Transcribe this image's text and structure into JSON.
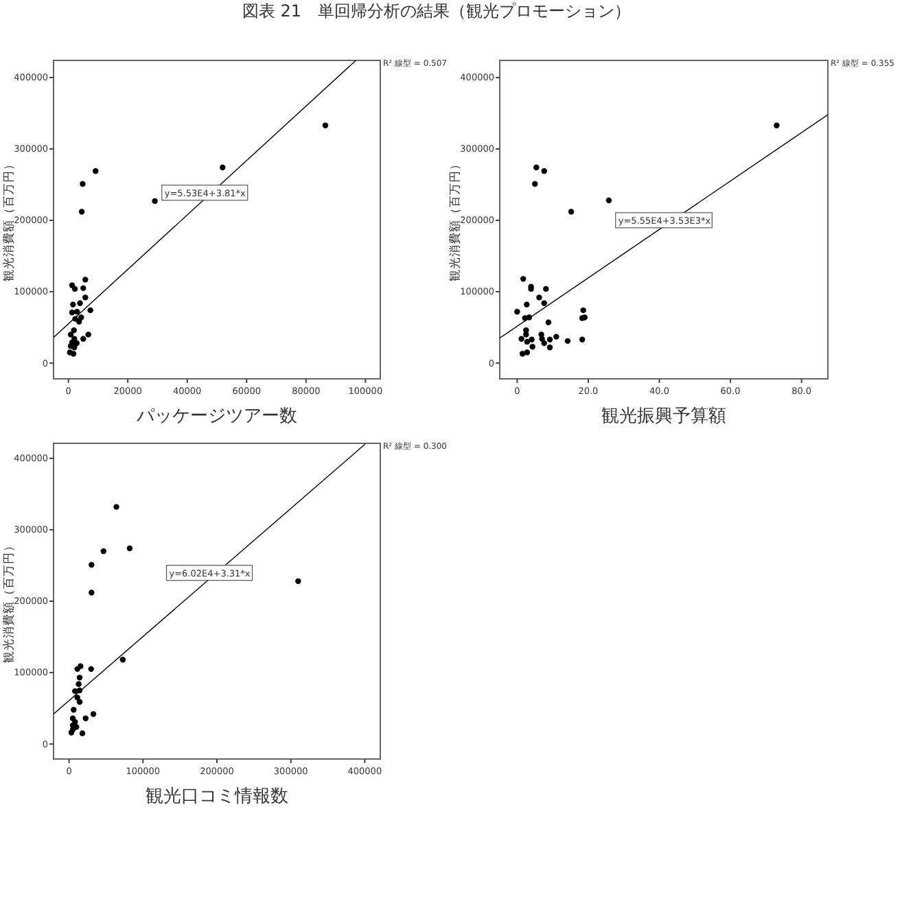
{
  "chart_data": [
    {
      "type": "scatter",
      "title": "図表 21　単回帰分析の結果（観光プロモーション）",
      "xlabel": "パッケージツアー数",
      "ylabel": "観光消費額（百万円）",
      "xlim": [
        -5000,
        105000
      ],
      "ylim": [
        -22000,
        424000
      ],
      "xticks": [
        0,
        20000,
        40000,
        60000,
        80000,
        100000
      ],
      "yticks": [
        0,
        100000,
        200000,
        300000,
        400000
      ],
      "grid": false,
      "annotations": [
        "y=5.53E4+3.81*x",
        "R² 線型 = 0.507"
      ],
      "series": [
        {
          "marker": "circle",
          "color": "#000000",
          "x": [
            86500,
            51900,
            29100,
            9150,
            4800,
            4500,
            5700,
            5000,
            1240,
            2170,
            5700,
            3900,
            1550,
            1240,
            7400,
            4300,
            2300,
            3600,
            1860,
            6700,
            800,
            5000,
            2000,
            1240,
            2800,
            800,
            2000,
            500,
            1700,
            2900
          ],
          "values": [
            333000,
            274000,
            227000,
            269000,
            251000,
            212000,
            117000,
            105000,
            109000,
            104000,
            92000,
            84000,
            82000,
            71000,
            74000,
            64000,
            62000,
            58000,
            46000,
            40000,
            40000,
            34000,
            34000,
            29000,
            28000,
            24000,
            22000,
            15000,
            13000,
            72000
          ]
        },
        {
          "type": "line",
          "color": "#000000",
          "x": [
            -5000,
            96800
          ],
          "values": [
            36000,
            424000
          ]
        }
      ]
    },
    {
      "type": "scatter",
      "xlabel": "観光振興予算額",
      "ylabel": "観光消費額（百万円）",
      "xlim": [
        -4.9,
        87.4
      ],
      "ylim": [
        -22000,
        424000
      ],
      "xticks": [
        0,
        {
          "value": 20,
          "label": "20.0"
        },
        {
          "value": 40,
          "label": "40.0"
        },
        {
          "value": 60,
          "label": "60.0"
        },
        {
          "value": 80,
          "label": "80.0"
        }
      ],
      "yticks": [
        0,
        100000,
        200000,
        300000,
        400000
      ],
      "grid": false,
      "annotations": [
        "y=5.55E4+3.53E3*x",
        "R² 線型 = 0.355"
      ],
      "series": [
        {
          "marker": "circle",
          "color": "#000000",
          "x": [
            73.0,
            5.4,
            7.6,
            5.0,
            25.8,
            15.2,
            1.7,
            3.9,
            3.9,
            8.1,
            6.2,
            7.6,
            2.7,
            0.0,
            18.6,
            18.3,
            19.0,
            3.4,
            2.2,
            8.8,
            2.5,
            2.5,
            6.8,
            11.0,
            1.2,
            4.1,
            7.0,
            9.2,
            14.2,
            18.3,
            2.8,
            7.6,
            4.3,
            9.2,
            1.5,
            2.8
          ],
          "values": [
            333000,
            274000,
            269000,
            251000,
            228000,
            212000,
            118000,
            107000,
            104000,
            104000,
            92000,
            84000,
            82000,
            72000,
            74000,
            63000,
            64000,
            64000,
            63000,
            57000,
            46000,
            40000,
            40000,
            37000,
            34000,
            33000,
            34000,
            33000,
            31000,
            33000,
            30000,
            28000,
            23000,
            22000,
            13000,
            15000
          ]
        },
        {
          "type": "line",
          "color": "#000000",
          "x": [
            -4.9,
            87.4
          ],
          "values": [
            35000,
            348000
          ]
        }
      ]
    },
    {
      "type": "scatter",
      "xlabel": "観光口コミ情報数",
      "ylabel": "観光消費額（百万円）",
      "xlim": [
        -21000,
        421000
      ],
      "ylim": [
        -21000,
        421000
      ],
      "xticks": [
        0,
        100000,
        200000,
        300000,
        400000
      ],
      "yticks": [
        0,
        100000,
        200000,
        300000,
        400000
      ],
      "grid": false,
      "annotations": [
        "y=6.02E4+3.31*x",
        "R² 線型 = 0.300"
      ],
      "series": [
        {
          "marker": "circle",
          "color": "#000000",
          "x": [
            64000,
            82000,
            46600,
            30400,
            30400,
            309900,
            72700,
            15500,
            11200,
            29800,
            14300,
            13000,
            8100,
            14300,
            11200,
            14300,
            32900,
            6200,
            22400,
            5000,
            8100,
            5000,
            9900,
            3100,
            18000,
            5000
          ],
          "values": [
            332000,
            274000,
            270000,
            251000,
            212000,
            228000,
            118000,
            109000,
            105000,
            105000,
            93000,
            84000,
            74000,
            75000,
            65000,
            59000,
            42000,
            48000,
            36000,
            36000,
            31000,
            26000,
            24000,
            16000,
            15000,
            20000
          ]
        },
        {
          "type": "line",
          "color": "#000000",
          "x": [
            -21000,
            400600
          ],
          "values": [
            42000,
            420000
          ]
        }
      ]
    }
  ]
}
